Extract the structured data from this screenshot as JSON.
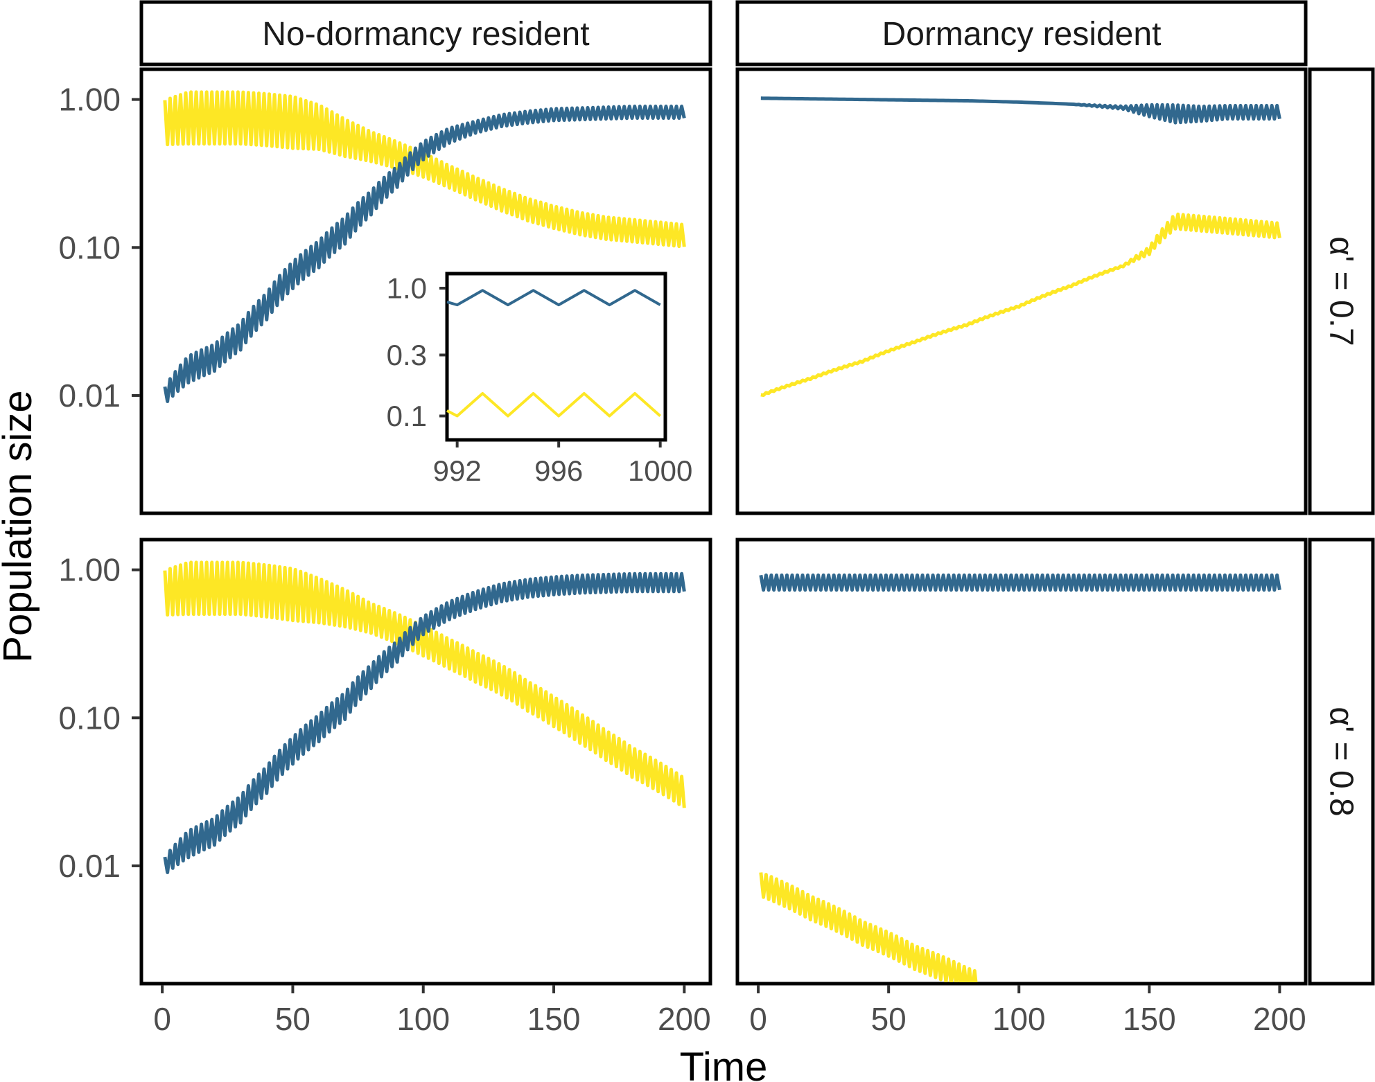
{
  "chart_data": {
    "type": "line",
    "scale_y": "log10",
    "xlabel": "Time",
    "ylabel": "Population size",
    "xlim": [
      -8,
      210
    ],
    "xticks": [
      0,
      50,
      100,
      150,
      200
    ],
    "ylim": [
      0.0016,
      1.6
    ],
    "yticks": [
      1.0,
      0.1,
      0.01
    ],
    "ytick_labels": [
      "1.00",
      "0.10",
      "0.01"
    ],
    "col_labels": [
      "No-dormancy resident",
      "Dormancy resident"
    ],
    "row_labels": [
      "α' = 0.7",
      "α' = 0.8"
    ],
    "series_colors": {
      "blue": "#31688e",
      "yellow": "#fde725"
    },
    "panels": [
      {
        "row": 0,
        "col": 0,
        "oscillating": true,
        "blue": {
          "x": [
            1,
            10,
            20,
            30,
            40,
            50,
            60,
            70,
            80,
            90,
            100,
            110,
            120,
            130,
            140,
            150,
            160,
            170,
            180,
            190,
            200
          ],
          "y": [
            0.01,
            0.015,
            0.018,
            0.025,
            0.04,
            0.065,
            0.09,
            0.13,
            0.2,
            0.3,
            0.45,
            0.57,
            0.65,
            0.72,
            0.76,
            0.79,
            0.8,
            0.81,
            0.82,
            0.82,
            0.82
          ],
          "amp": [
            0.12,
            0.18,
            0.18,
            0.18,
            0.18,
            0.18,
            0.18,
            0.18,
            0.16,
            0.14,
            0.12,
            0.1,
            0.08,
            0.08,
            0.08,
            0.08,
            0.08,
            0.08,
            0.08,
            0.08,
            0.08
          ]
        },
        "yellow": {
          "x": [
            1,
            10,
            20,
            30,
            40,
            50,
            60,
            70,
            80,
            90,
            100,
            110,
            120,
            130,
            140,
            150,
            160,
            170,
            180,
            190,
            200
          ],
          "y": [
            0.7,
            0.75,
            0.75,
            0.75,
            0.73,
            0.7,
            0.65,
            0.55,
            0.48,
            0.42,
            0.36,
            0.3,
            0.25,
            0.21,
            0.18,
            0.16,
            0.145,
            0.135,
            0.13,
            0.125,
            0.12
          ],
          "amp": [
            0.3,
            0.35,
            0.35,
            0.35,
            0.35,
            0.35,
            0.3,
            0.25,
            0.2,
            0.18,
            0.16,
            0.15,
            0.15,
            0.15,
            0.15,
            0.15,
            0.15,
            0.15,
            0.15,
            0.15,
            0.15
          ]
        }
      },
      {
        "row": 0,
        "col": 1,
        "oscillating": true,
        "blue": {
          "x": [
            1,
            20,
            40,
            60,
            80,
            100,
            120,
            140,
            150,
            160,
            170,
            180,
            190,
            200
          ],
          "y": [
            1.02,
            1.01,
            1.0,
            0.99,
            0.98,
            0.96,
            0.93,
            0.88,
            0.84,
            0.8,
            0.8,
            0.82,
            0.82,
            0.82
          ],
          "amp": [
            0,
            0,
            0,
            0,
            0,
            0,
            0,
            0.02,
            0.08,
            0.12,
            0.1,
            0.09,
            0.09,
            0.09
          ]
        },
        "yellow": {
          "x": [
            1,
            20,
            40,
            60,
            80,
            100,
            120,
            140,
            150,
            160,
            170,
            180,
            190,
            200
          ],
          "y": [
            0.01,
            0.013,
            0.017,
            0.023,
            0.03,
            0.04,
            0.055,
            0.075,
            0.095,
            0.15,
            0.145,
            0.14,
            0.135,
            0.13
          ],
          "amp": [
            0.01,
            0.01,
            0.01,
            0.01,
            0.01,
            0.01,
            0.01,
            0.01,
            0.05,
            0.1,
            0.1,
            0.1,
            0.1,
            0.1
          ]
        }
      },
      {
        "row": 1,
        "col": 0,
        "oscillating": true,
        "blue": {
          "x": [
            1,
            10,
            20,
            30,
            40,
            50,
            60,
            70,
            80,
            90,
            100,
            110,
            120,
            130,
            140,
            150,
            160,
            170,
            180,
            190,
            200
          ],
          "y": [
            0.01,
            0.014,
            0.017,
            0.024,
            0.038,
            0.06,
            0.085,
            0.12,
            0.19,
            0.28,
            0.42,
            0.53,
            0.62,
            0.7,
            0.75,
            0.78,
            0.8,
            0.81,
            0.82,
            0.82,
            0.82
          ],
          "amp": [
            0.12,
            0.18,
            0.18,
            0.18,
            0.18,
            0.18,
            0.18,
            0.18,
            0.16,
            0.14,
            0.12,
            0.12,
            0.12,
            0.12,
            0.12,
            0.12,
            0.12,
            0.12,
            0.12,
            0.12,
            0.12
          ]
        },
        "yellow": {
          "x": [
            1,
            10,
            20,
            30,
            40,
            50,
            60,
            70,
            80,
            90,
            100,
            110,
            120,
            130,
            140,
            150,
            160,
            170,
            180,
            190,
            200
          ],
          "y": [
            0.7,
            0.75,
            0.75,
            0.75,
            0.72,
            0.68,
            0.62,
            0.55,
            0.47,
            0.4,
            0.33,
            0.27,
            0.22,
            0.18,
            0.14,
            0.11,
            0.085,
            0.065,
            0.05,
            0.04,
            0.031
          ],
          "amp": [
            0.3,
            0.35,
            0.35,
            0.35,
            0.35,
            0.35,
            0.3,
            0.25,
            0.2,
            0.2,
            0.2,
            0.2,
            0.2,
            0.2,
            0.2,
            0.2,
            0.2,
            0.2,
            0.2,
            0.2,
            0.2
          ]
        }
      },
      {
        "row": 1,
        "col": 1,
        "oscillating": true,
        "blue": {
          "x": [
            1,
            50,
            100,
            150,
            200
          ],
          "y": [
            0.82,
            0.82,
            0.82,
            0.82,
            0.82
          ],
          "amp": [
            0.1,
            0.1,
            0.1,
            0.1,
            0.1
          ]
        },
        "yellow": {
          "x": [
            1,
            20,
            40,
            60,
            80,
            84
          ],
          "y": [
            0.0075,
            0.0052,
            0.0035,
            0.0024,
            0.0017,
            0.0016
          ],
          "amp": [
            0.16,
            0.16,
            0.16,
            0.16,
            0.16,
            0.16
          ]
        }
      }
    ],
    "inset": {
      "panel": [
        0,
        0
      ],
      "xlim": [
        991.6,
        1000.2
      ],
      "xticks": [
        992,
        996,
        1000
      ],
      "ylim": [
        0.065,
        1.3
      ],
      "yticks": [
        1.0,
        0.3,
        0.1
      ],
      "ytick_labels": [
        "1.0",
        "0.3",
        "0.1"
      ],
      "blue": {
        "x": [
          991.6,
          992,
          993,
          994,
          995,
          996,
          997,
          998,
          999,
          1000
        ],
        "y": [
          0.78,
          0.74,
          0.96,
          0.74,
          0.96,
          0.74,
          0.96,
          0.74,
          0.96,
          0.74
        ]
      },
      "yellow": {
        "x": [
          991.6,
          992,
          993,
          994,
          995,
          996,
          997,
          998,
          999,
          1000
        ],
        "y": [
          0.11,
          0.1,
          0.15,
          0.1,
          0.15,
          0.1,
          0.15,
          0.1,
          0.15,
          0.1
        ]
      }
    }
  }
}
